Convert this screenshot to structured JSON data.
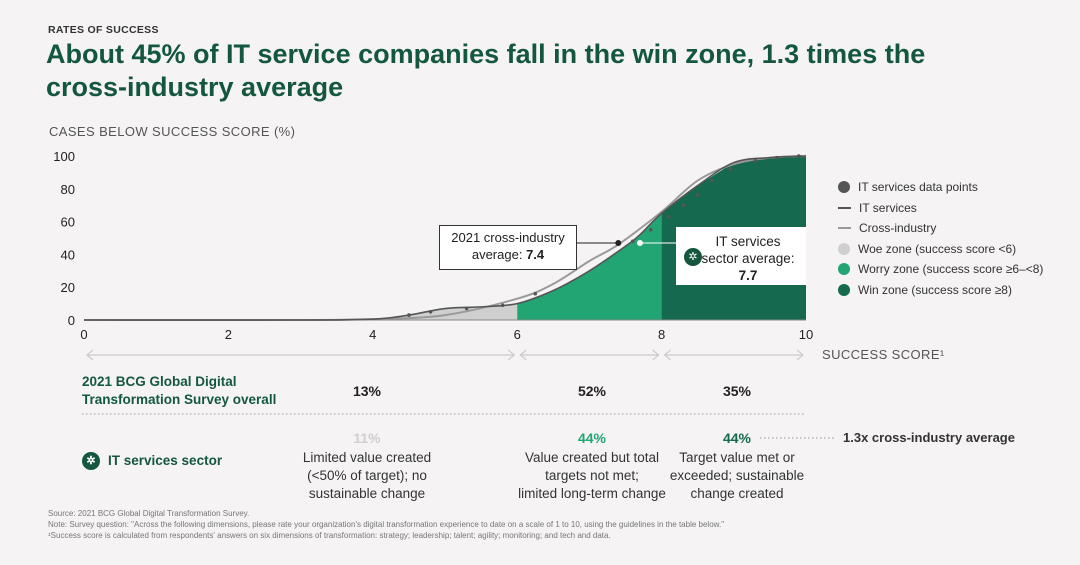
{
  "kicker": "RATES OF SUCCESS",
  "title": "About 45% of IT service companies fall in the win zone, 1.3 times the cross-industry average",
  "colors": {
    "woe": "#cfcfcf",
    "worry": "#22a573",
    "win": "#14694f",
    "brand": "#14573f",
    "it_line": "#555555",
    "cross_line": "#9a9a9a"
  },
  "chart_data": {
    "type": "area",
    "ylabel": "CASES BELOW SUCCESS SCORE (%)",
    "xlabel": "SUCCESS SCORE¹",
    "xlim": [
      0,
      10
    ],
    "ylim": [
      0,
      100
    ],
    "xticks": [
      0,
      2,
      4,
      6,
      8,
      10
    ],
    "yticks": [
      0,
      20,
      40,
      60,
      80,
      100
    ],
    "series": [
      {
        "name": "IT services",
        "x": [
          0,
          3,
          4,
          4.5,
          5,
          5.5,
          6,
          6.5,
          7,
          7.5,
          7.7,
          8,
          8.5,
          9,
          9.5,
          10
        ],
        "y": [
          0,
          0,
          0.5,
          3,
          7,
          8,
          10,
          18,
          30,
          45,
          52,
          65,
          82,
          96,
          99,
          100
        ]
      },
      {
        "name": "Cross-industry",
        "x": [
          0,
          3,
          4,
          5,
          6,
          6.5,
          7,
          7.4,
          8,
          8.5,
          9,
          9.5,
          10
        ],
        "y": [
          0,
          0,
          0.5,
          3,
          13,
          22,
          36,
          46,
          66,
          85,
          95,
          99,
          100
        ]
      },
      {
        "name": "IT services data points",
        "x": [
          4.5,
          4.8,
          5.3,
          5.8,
          6.25,
          7.6,
          7.85,
          8.1,
          8.3,
          8.5,
          8.7,
          8.95,
          9.3,
          9.6,
          9.9
        ],
        "y": [
          3,
          5,
          7,
          9,
          16,
          48,
          55,
          63,
          70,
          76,
          85,
          92,
          97,
          99,
          100
        ]
      }
    ],
    "zones": [
      {
        "name": "Woe zone (success score <6)",
        "from": 0,
        "to": 6
      },
      {
        "name": "Worry zone (success score ≥6–<8)",
        "from": 6,
        "to": 8
      },
      {
        "name": "Win zone (success score ≥8)",
        "from": 8,
        "to": 10
      }
    ],
    "annotations": {
      "cross_avg": {
        "label": "2021 cross-industry average:",
        "value": "7.4",
        "x": 7.4
      },
      "it_avg": {
        "label": "IT services sector average:",
        "value": "7.7",
        "x": 7.7
      }
    }
  },
  "legend": [
    {
      "label": "IT services data points",
      "kind": "dot",
      "color": "#555555"
    },
    {
      "label": "IT services",
      "kind": "line",
      "color": "#555555"
    },
    {
      "label": "Cross-industry",
      "kind": "line",
      "color": "#9a9a9a"
    },
    {
      "label": "Woe zone (success score <6)",
      "kind": "dot",
      "color": "#cfcfcf"
    },
    {
      "label": "Worry zone (success score ≥6–<8)",
      "kind": "dot",
      "color": "#22a573"
    },
    {
      "label": "Win zone (success score ≥8)",
      "kind": "dot",
      "color": "#14694f"
    }
  ],
  "callouts": {
    "cross_line1": "2021 cross-industry",
    "cross_line2": "average:",
    "cross_value": "7.4",
    "it_line1": "IT services",
    "it_line2": "sector average:",
    "it_value": "7.7"
  },
  "table": {
    "survey_label_1": "2021 BCG Global Digital",
    "survey_label_2": "Transformation Survey overall",
    "survey_pcts": [
      "13%",
      "52%",
      "35%"
    ],
    "it_label": "IT services sector",
    "it_pcts": [
      "11%",
      "44%",
      "44%"
    ],
    "it_pct_colors": [
      "#cfcfcf",
      "#22a573",
      "#14694f"
    ],
    "descs": [
      [
        "Limited value created",
        "(<50% of target); no",
        "sustainable change"
      ],
      [
        "Value created but total",
        "targets not met;",
        "limited long-term change"
      ],
      [
        "Target value met or",
        "exceeded; sustainable",
        "change created"
      ]
    ],
    "multiple_note": "1.3x cross-industry average"
  },
  "notes": [
    "Source: 2021 BCG Global Digital Transformation Survey.",
    "Note: Survey question: \"Across the following dimensions, please rate your organization's digital transformation experience to date on a scale of 1 to 10, using the guidelines in the table below.\"",
    "¹Success score is calculated from respondents' answers on six dimensions of transformation: strategy; leadership; talent; agility; monitoring; and tech and data."
  ]
}
